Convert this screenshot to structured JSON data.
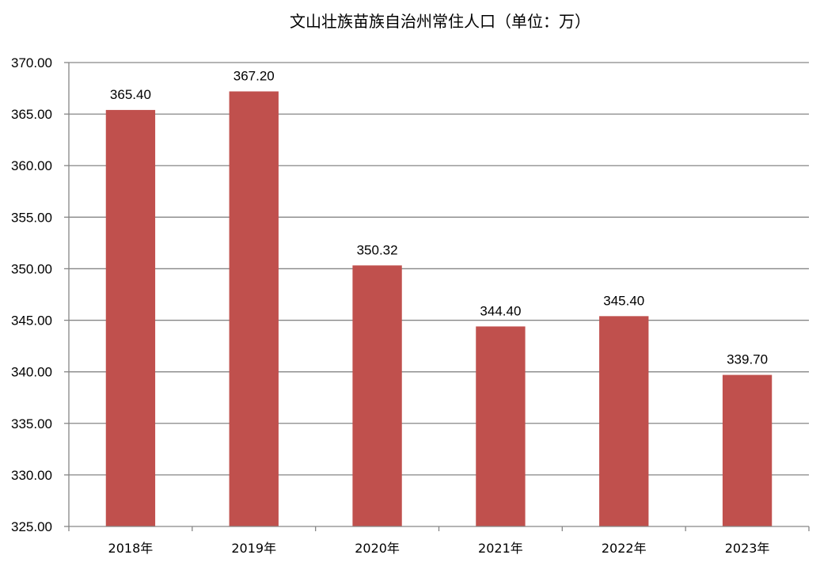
{
  "chart_data": {
    "type": "bar",
    "title": "文山壮族苗族自治州常住人口（单位：万）",
    "categories": [
      "2018年",
      "2019年",
      "2020年",
      "2021年",
      "2022年",
      "2023年"
    ],
    "values": [
      365.4,
      367.2,
      350.32,
      344.4,
      345.4,
      339.7
    ],
    "data_labels": [
      "365.40",
      "367.20",
      "350.32",
      "344.40",
      "345.40",
      "339.70"
    ],
    "ylim": [
      325,
      370
    ],
    "yticks": [
      325,
      330,
      335,
      340,
      345,
      350,
      355,
      360,
      365,
      370
    ],
    "ytick_labels": [
      "325.00",
      "330.00",
      "335.00",
      "340.00",
      "345.00",
      "350.00",
      "355.00",
      "360.00",
      "365.00",
      "370.00"
    ],
    "xlabel": "",
    "ylabel": "",
    "grid": true,
    "legend": "none",
    "bar_color": "#C0504D"
  }
}
